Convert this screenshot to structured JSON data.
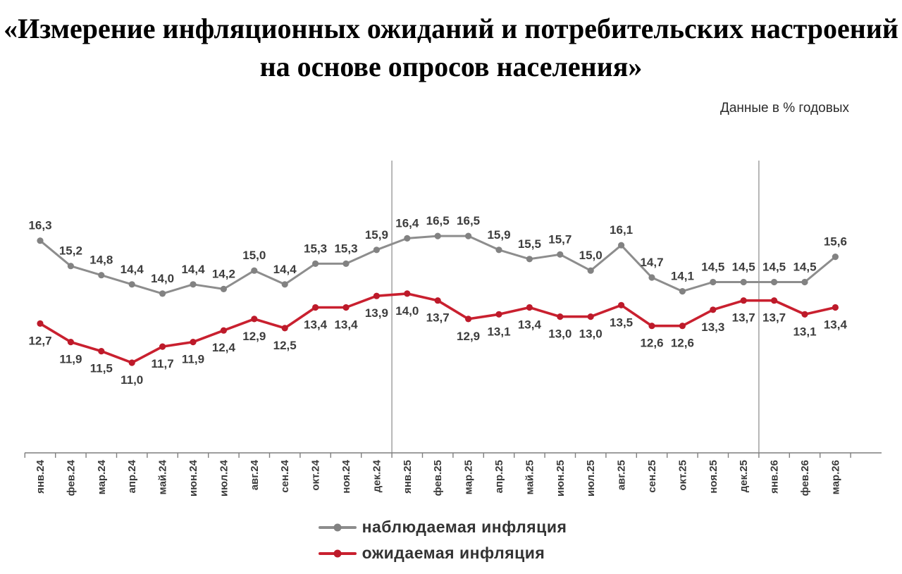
{
  "title": {
    "line1": "«Измерение инфляционных ожиданий и потребительских настроений",
    "line2": "на основе опросов населения»"
  },
  "note": "Данные в % годовых",
  "chart_data": {
    "type": "line",
    "title": "Измерение инфляционных ожиданий и потребительских настроений на основе опросов населения",
    "units_note": "Данные в % годовых",
    "categories": [
      "янв.24",
      "фев.24",
      "мар.24",
      "апр.24",
      "май.24",
      "июн.24",
      "июл.24",
      "авг.24",
      "сен.24",
      "окт.24",
      "ноя.24",
      "дек.24",
      "янв.25",
      "фев.25",
      "мар.25",
      "апр.25",
      "май.25",
      "июн.25",
      "июл.25",
      "авг.25",
      "сен.25",
      "окт.25",
      "ноя.25",
      "дек.25",
      "янв.26",
      "фев.26",
      "мар.26"
    ],
    "series": [
      {
        "name": "наблюдаемая инфляция",
        "color": "#8d8d8d",
        "marker_color": "#828282",
        "values": [
          16.3,
          15.2,
          14.8,
          14.4,
          14.0,
          14.4,
          14.2,
          15.0,
          14.4,
          15.3,
          15.3,
          15.9,
          16.4,
          16.5,
          16.5,
          15.9,
          15.5,
          15.7,
          15.0,
          16.1,
          14.7,
          14.1,
          14.5,
          14.5,
          14.5,
          14.5,
          15.6
        ]
      },
      {
        "name": "ожидаемая инфляция",
        "color": "#c9202f",
        "marker_color": "#bd1a2a",
        "values": [
          12.7,
          11.9,
          11.5,
          11.0,
          11.7,
          11.9,
          12.4,
          12.9,
          12.5,
          13.4,
          13.4,
          13.9,
          14.0,
          13.7,
          12.9,
          13.1,
          13.4,
          13.0,
          13.0,
          13.5,
          12.6,
          12.6,
          13.3,
          13.7,
          13.7,
          13.1,
          13.4
        ]
      }
    ],
    "ylim": [
      10.5,
      17.5
    ],
    "grid": false,
    "legend_position": "bottom",
    "decimal_separator": ",",
    "separator_after_indices": [
      11,
      23
    ],
    "axis_color": "#7f7f7f",
    "separator_color": "#9a9a9a"
  }
}
